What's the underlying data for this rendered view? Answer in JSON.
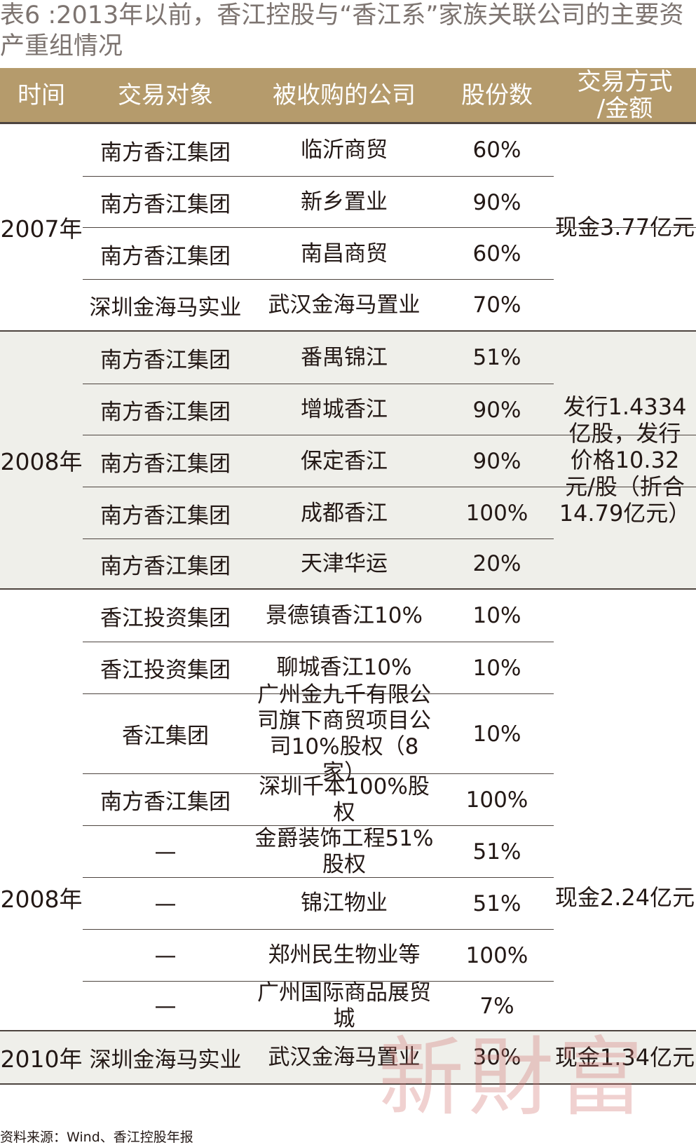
{
  "title": "表6 :2013年以前，香江控股与“香江系”家族关联公司的主要资产重组情况",
  "headers": {
    "time": "时间",
    "party": "交易对象",
    "company": "被收购的公司",
    "shares": "股份数",
    "method_line1": "交易方式",
    "method_line2": "/金额"
  },
  "groups": [
    {
      "year": "2007年",
      "method": "现金3.77亿元",
      "rows": [
        {
          "party": "南方香江集团",
          "company": "临沂商贸",
          "shares": "60%"
        },
        {
          "party": "南方香江集团",
          "company": "新乡置业",
          "shares": "90%"
        },
        {
          "party": "南方香江集团",
          "company": "南昌商贸",
          "shares": "60%"
        },
        {
          "party": "深圳金海马实业",
          "company": "武汉金海马置业",
          "shares": "70%"
        }
      ]
    },
    {
      "year": "2008年",
      "method": "发行1.4334亿股，发行价格10.32元/股（折合14.79亿元）",
      "rows": [
        {
          "party": "南方香江集团",
          "company": "番禺锦江",
          "shares": "51%"
        },
        {
          "party": "南方香江集团",
          "company": "增城香江",
          "shares": "90%"
        },
        {
          "party": "南方香江集团",
          "company": "保定香江",
          "shares": "90%"
        },
        {
          "party": "南方香江集团",
          "company": "成都香江",
          "shares": "100%"
        },
        {
          "party": "南方香江集团",
          "company": "天津华运",
          "shares": "20%"
        }
      ]
    },
    {
      "year": "2008年",
      "method": "现金2.24亿元",
      "rows": [
        {
          "party": "香江投资集团",
          "company": "景德镇香江10%",
          "shares": "10%"
        },
        {
          "party": "香江投资集团",
          "company": "聊城香江10%",
          "shares": "10%"
        },
        {
          "party": "香江集团",
          "company": "广州金九千有限公司旗下商贸项目公司10%股权（8家）",
          "shares": "10%"
        },
        {
          "party": "南方香江集团",
          "company": "深圳千本100%股权",
          "shares": "100%"
        },
        {
          "party": "—",
          "company": "金爵装饰工程51%股权",
          "shares": "51%"
        },
        {
          "party": "—",
          "company": "锦江物业",
          "shares": "51%"
        },
        {
          "party": "—",
          "company": "郑州民生物业等",
          "shares": "100%"
        },
        {
          "party": "—",
          "company": "广州国际商品展贸城",
          "shares": "7%"
        }
      ]
    },
    {
      "year": "2010年",
      "method": "现金1.34亿元",
      "rows": [
        {
          "party": "深圳金海马实业",
          "company": "武汉金海马置业",
          "shares": "30%"
        }
      ]
    }
  ],
  "source": "资料来源：Wind、香江控股年报",
  "watermark": "新財富"
}
